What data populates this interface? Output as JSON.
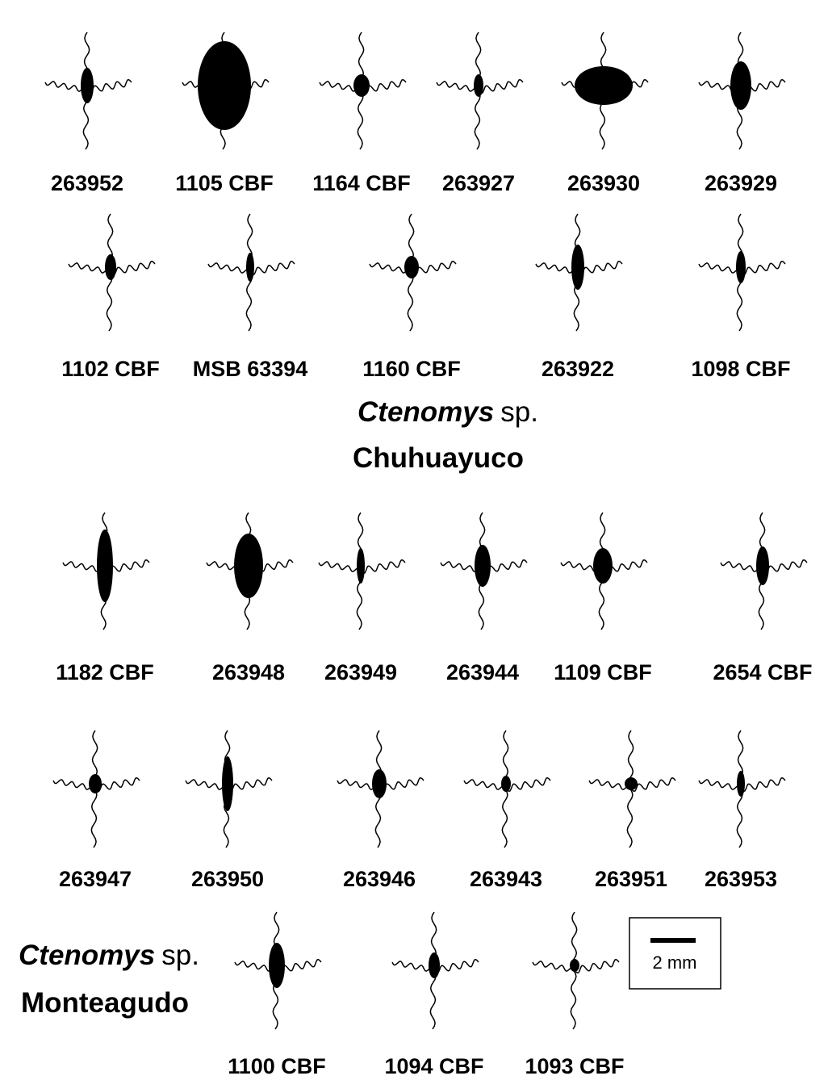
{
  "rows": [
    {
      "labels": [
        "263952",
        "1105 CBF",
        "1164 CBF",
        "263927",
        "263930",
        "263929"
      ]
    },
    {
      "labels": [
        "1102 CBF",
        "MSB 63394",
        "1160 CBF",
        "263922",
        "1098 CBF"
      ]
    },
    {
      "labels": [
        "1182 CBF",
        "263948",
        "263949",
        "263944",
        "1109 CBF",
        "2654 CBF"
      ]
    },
    {
      "labels": [
        "263947",
        "263950",
        "263946",
        "263943",
        "263951",
        "263953"
      ]
    },
    {
      "labels": [
        "1100 CBF",
        "1094 CBF",
        "1093 CBF"
      ]
    }
  ],
  "captions": [
    {
      "genus": "Ctenomys",
      "rest": "sp.",
      "locality": "Chuhuayuco"
    },
    {
      "genus": "Ctenomys",
      "rest": "sp.",
      "locality": "Monteagudo"
    }
  ],
  "scale_bar": "2 mm"
}
